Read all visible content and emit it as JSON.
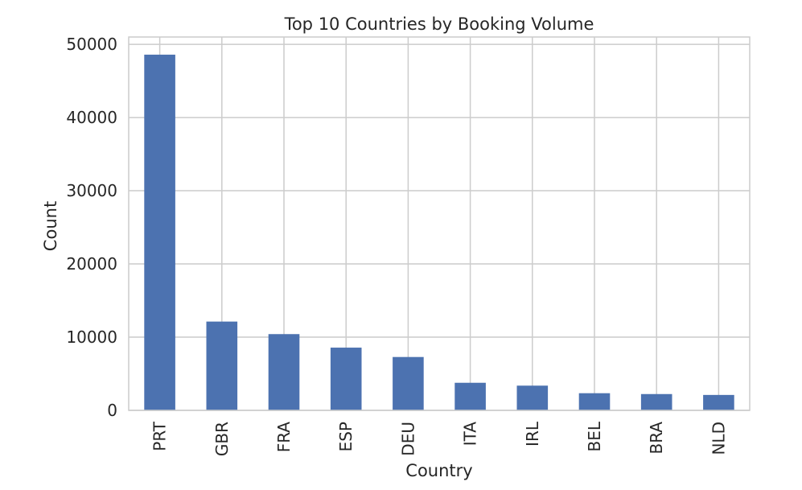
{
  "chart_data": {
    "type": "bar",
    "title": "Top 10 Countries by Booking Volume",
    "xlabel": "Country",
    "ylabel": "Count",
    "categories": [
      "PRT",
      "GBR",
      "FRA",
      "ESP",
      "DEU",
      "ITA",
      "IRL",
      "BEL",
      "BRA",
      "NLD"
    ],
    "values": [
      48590,
      12129,
      10415,
      8568,
      7287,
      3766,
      3375,
      2342,
      2224,
      2104
    ],
    "ylim": [
      0,
      51000
    ],
    "yticks": [
      0,
      10000,
      20000,
      30000,
      40000,
      50000
    ],
    "ytick_labels": [
      "0",
      "10000",
      "20000",
      "30000",
      "40000",
      "50000"
    ],
    "grid": true,
    "legend": "none",
    "colors": {
      "bar": "#4c72b0",
      "grid": "#cccccc",
      "spine": "#cccccc",
      "text": "#262626",
      "background": "#ffffff"
    }
  }
}
